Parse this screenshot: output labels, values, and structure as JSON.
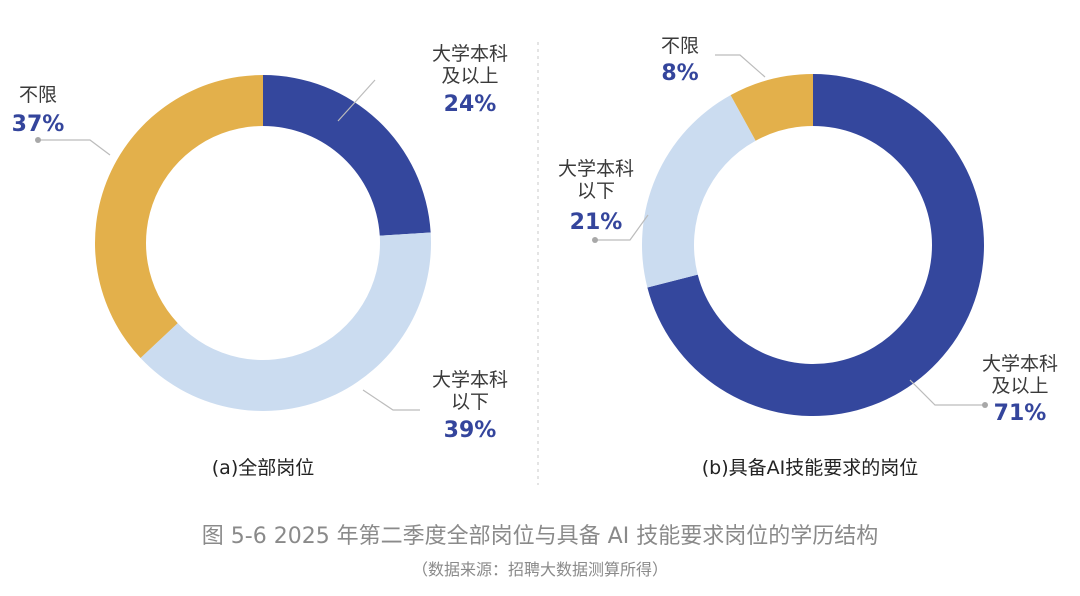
{
  "figure": {
    "caption": "图 5-6  2025 年第二季度全部岗位与具备 AI 技能要求岗位的学历结构",
    "source": "（数据来源：招聘大数据测算所得）"
  },
  "colors": {
    "above_bachelor": "#34479d",
    "below_bachelor": "#cbdcf0",
    "unlimited": "#e3b04b",
    "percent_text": "#34459c",
    "leader": "#bcbcbc"
  },
  "chart_data": [
    {
      "type": "pie",
      "donut": true,
      "title": "(a)全部岗位",
      "slices": [
        {
          "label_lines": [
            "大学本科",
            "及以上"
          ],
          "value": 24,
          "value_label": "24%",
          "color": "#34479d"
        },
        {
          "label_lines": [
            "大学本科",
            "以下"
          ],
          "value": 39,
          "value_label": "39%",
          "color": "#cbdcf0"
        },
        {
          "label_lines": [
            "不限"
          ],
          "value": 37,
          "value_label": "37%",
          "color": "#e3b04b"
        }
      ]
    },
    {
      "type": "pie",
      "donut": true,
      "title": "(b)具备AI技能要求的岗位",
      "slices": [
        {
          "label_lines": [
            "大学本科",
            "及以上"
          ],
          "value": 71,
          "value_label": "71%",
          "color": "#34479d"
        },
        {
          "label_lines": [
            "大学本科",
            "以下"
          ],
          "value": 21,
          "value_label": "21%",
          "color": "#cbdcf0"
        },
        {
          "label_lines": [
            "不限"
          ],
          "value": 8,
          "value_label": "8%",
          "color": "#e3b04b"
        }
      ]
    }
  ]
}
